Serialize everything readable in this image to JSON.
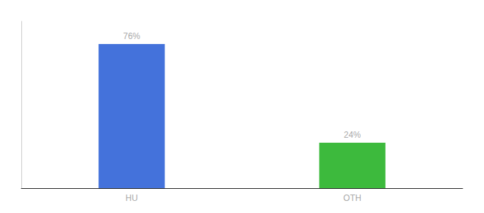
{
  "chart_data": {
    "type": "bar",
    "categories": [
      "HU",
      "OTH"
    ],
    "values": [
      76,
      24
    ],
    "colors": [
      "#4472db",
      "#3dba3d"
    ],
    "value_labels": [
      "76%",
      "24%"
    ],
    "data_labels": true,
    "ylim": [
      0,
      88
    ],
    "tick_labels": "x",
    "grid": false
  }
}
